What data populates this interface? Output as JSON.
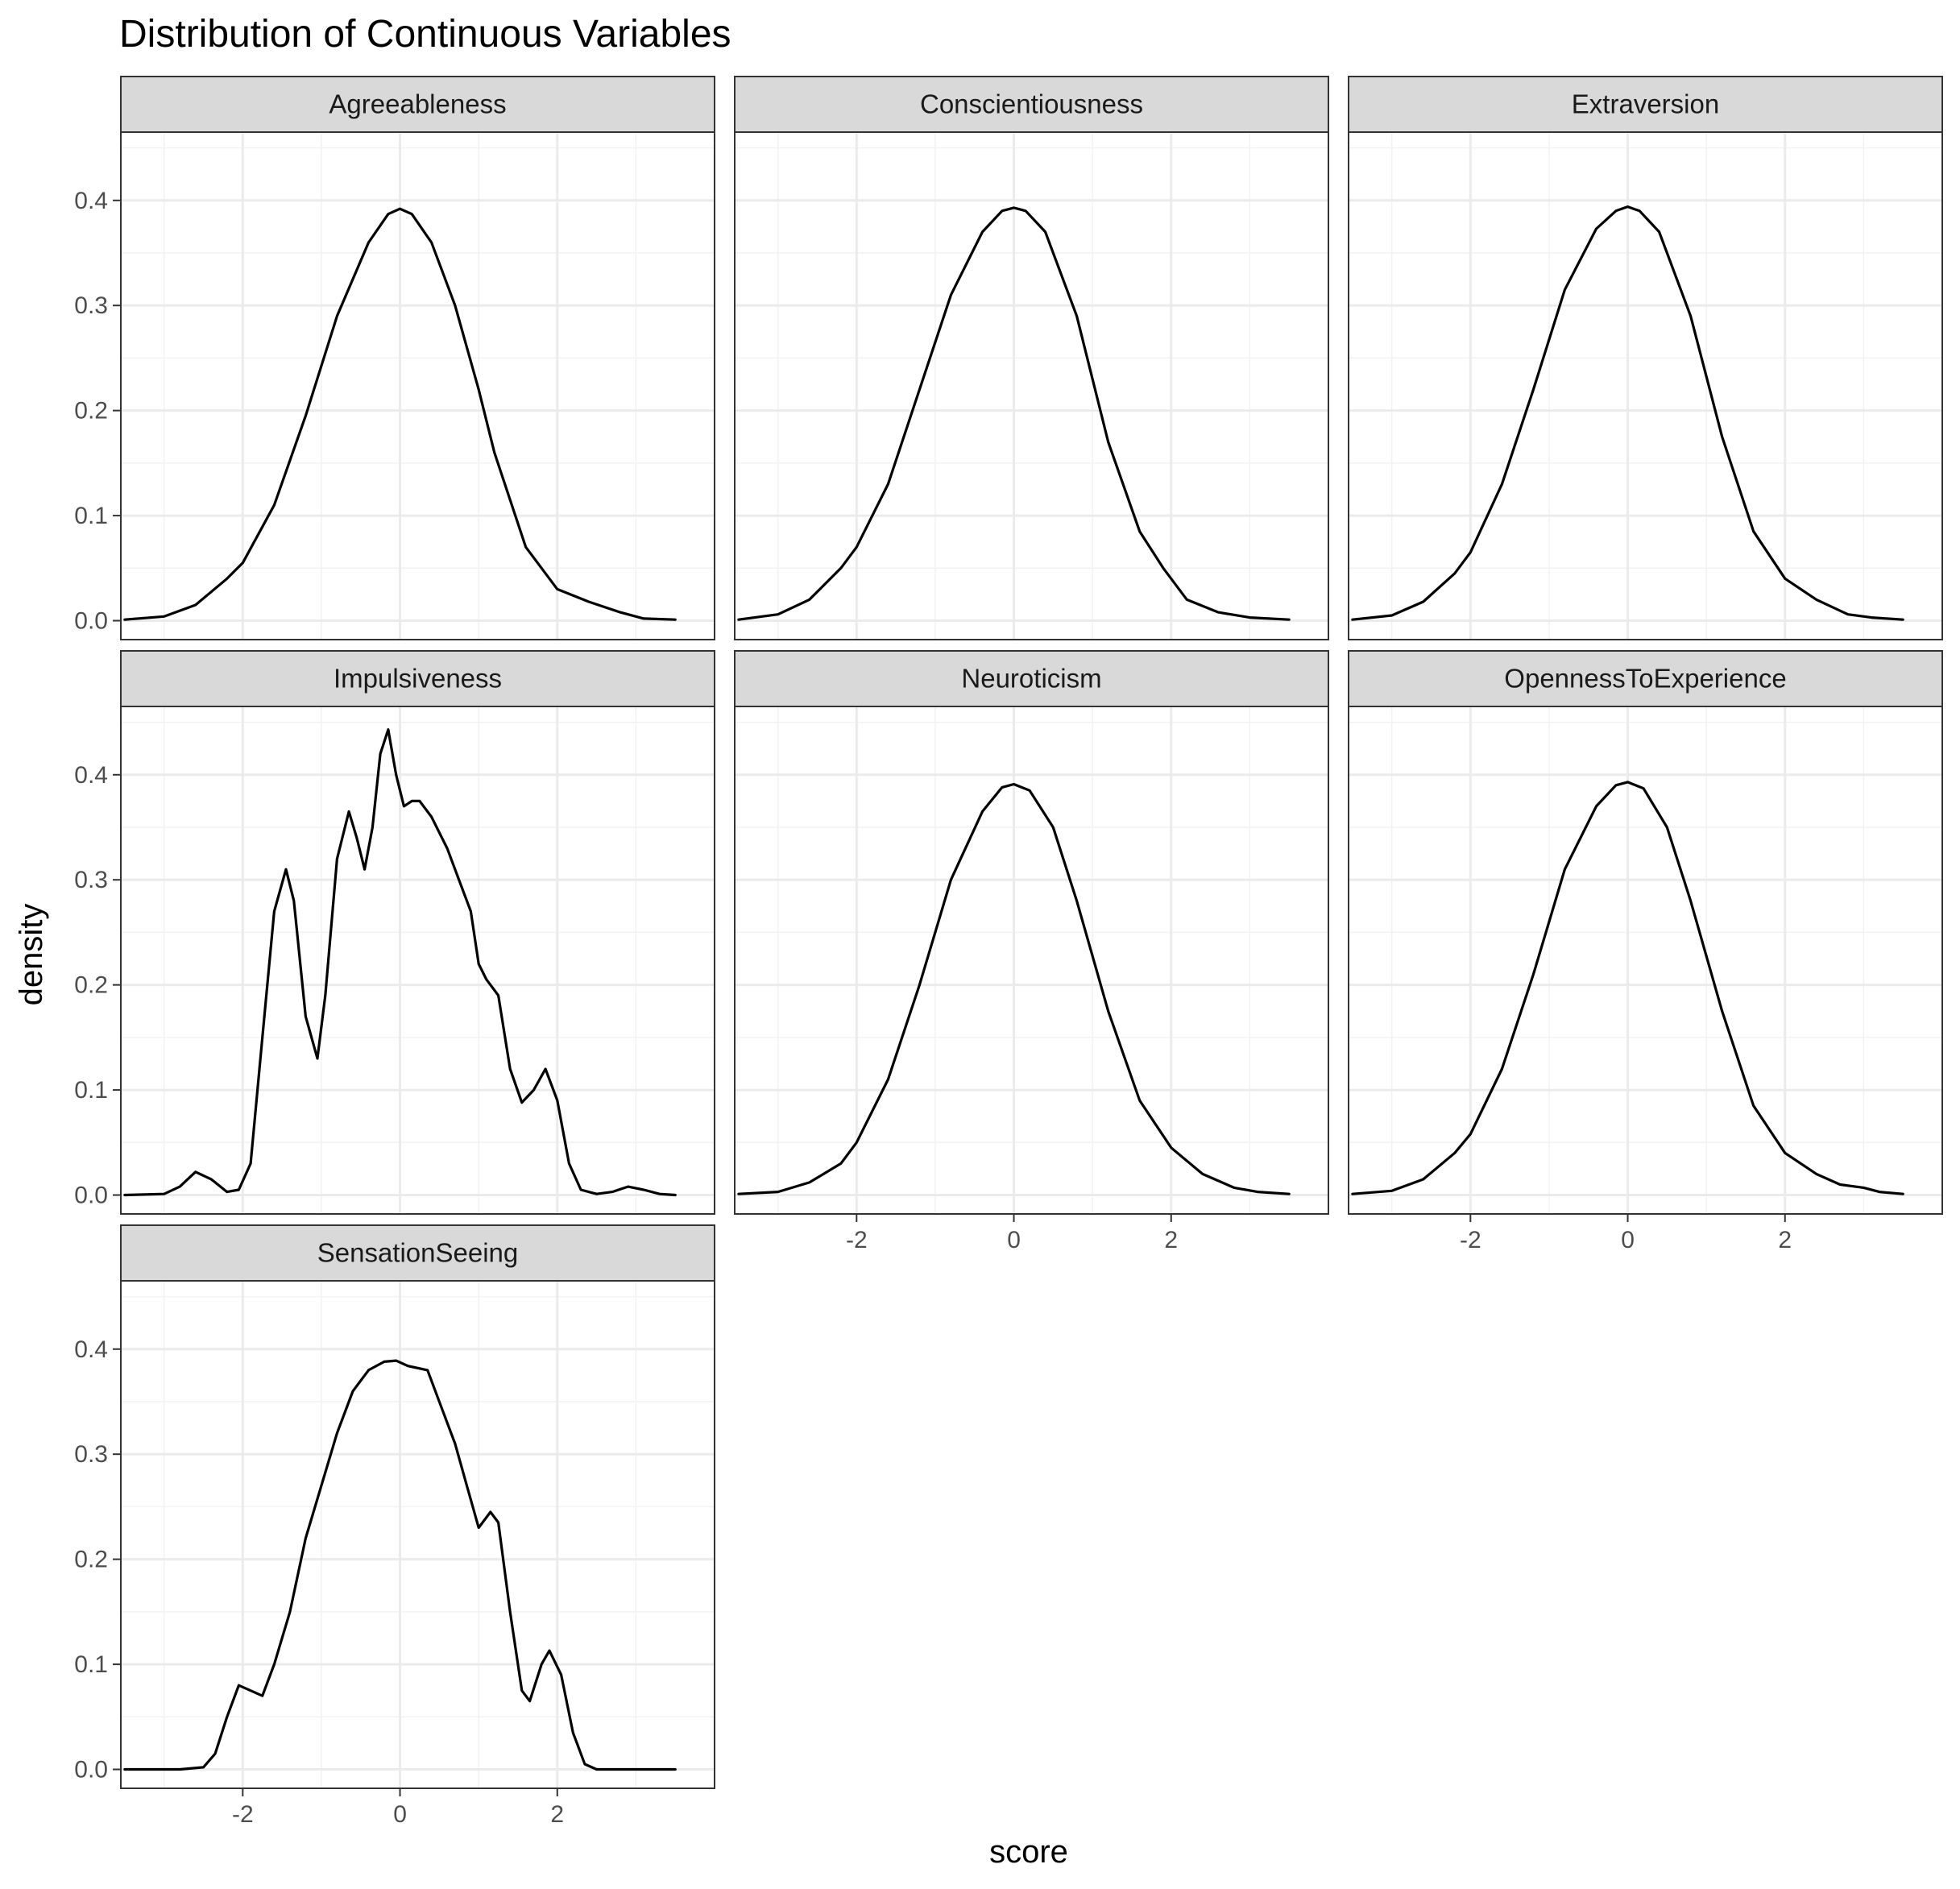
{
  "chart_data": {
    "type": "line",
    "title": "Distribution of Continuous Variables",
    "xlabel": "score",
    "ylabel": "density",
    "xlim": [
      -3.55,
      4.0
    ],
    "ylim": [
      -0.018,
      0.465
    ],
    "x_ticks": [
      "-2",
      "0",
      "2"
    ],
    "x_tick_values": [
      -2,
      0,
      2
    ],
    "y_ticks": [
      "0.0",
      "0.1",
      "0.2",
      "0.3",
      "0.4"
    ],
    "y_tick_values": [
      0.0,
      0.1,
      0.2,
      0.3,
      0.4
    ],
    "grid": true,
    "line_color": "#000000",
    "panels": [
      {
        "name": "Agreeableness",
        "points": [
          [
            -3.5,
            0.001
          ],
          [
            -3.0,
            0.004
          ],
          [
            -2.6,
            0.015
          ],
          [
            -2.2,
            0.04
          ],
          [
            -2.0,
            0.055
          ],
          [
            -1.6,
            0.11
          ],
          [
            -1.2,
            0.195
          ],
          [
            -0.8,
            0.29
          ],
          [
            -0.4,
            0.36
          ],
          [
            -0.15,
            0.387
          ],
          [
            0.0,
            0.392
          ],
          [
            0.15,
            0.387
          ],
          [
            0.4,
            0.36
          ],
          [
            0.7,
            0.3
          ],
          [
            1.0,
            0.22
          ],
          [
            1.2,
            0.16
          ],
          [
            1.6,
            0.07
          ],
          [
            2.0,
            0.03
          ],
          [
            2.4,
            0.018
          ],
          [
            2.8,
            0.008
          ],
          [
            3.1,
            0.002
          ],
          [
            3.5,
            0.001
          ]
        ]
      },
      {
        "name": "Conscientiousness",
        "points": [
          [
            -3.5,
            0.001
          ],
          [
            -3.0,
            0.006
          ],
          [
            -2.6,
            0.02
          ],
          [
            -2.2,
            0.05
          ],
          [
            -2.0,
            0.07
          ],
          [
            -1.6,
            0.13
          ],
          [
            -1.2,
            0.22
          ],
          [
            -0.8,
            0.31
          ],
          [
            -0.4,
            0.37
          ],
          [
            -0.15,
            0.39
          ],
          [
            0.0,
            0.393
          ],
          [
            0.15,
            0.39
          ],
          [
            0.4,
            0.37
          ],
          [
            0.8,
            0.29
          ],
          [
            1.2,
            0.17
          ],
          [
            1.6,
            0.085
          ],
          [
            1.9,
            0.05
          ],
          [
            2.2,
            0.02
          ],
          [
            2.6,
            0.008
          ],
          [
            3.0,
            0.003
          ],
          [
            3.5,
            0.001
          ]
        ]
      },
      {
        "name": "Extraversion",
        "points": [
          [
            -3.5,
            0.001
          ],
          [
            -3.0,
            0.005
          ],
          [
            -2.6,
            0.018
          ],
          [
            -2.2,
            0.045
          ],
          [
            -2.0,
            0.065
          ],
          [
            -1.6,
            0.13
          ],
          [
            -1.2,
            0.22
          ],
          [
            -0.8,
            0.315
          ],
          [
            -0.4,
            0.373
          ],
          [
            -0.15,
            0.39
          ],
          [
            0.0,
            0.394
          ],
          [
            0.15,
            0.39
          ],
          [
            0.4,
            0.37
          ],
          [
            0.8,
            0.29
          ],
          [
            1.2,
            0.175
          ],
          [
            1.6,
            0.085
          ],
          [
            2.0,
            0.04
          ],
          [
            2.4,
            0.02
          ],
          [
            2.8,
            0.006
          ],
          [
            3.1,
            0.003
          ],
          [
            3.5,
            0.001
          ]
        ]
      },
      {
        "name": "Impulsiveness",
        "points": [
          [
            -3.5,
            0.0
          ],
          [
            -3.0,
            0.001
          ],
          [
            -2.8,
            0.008
          ],
          [
            -2.6,
            0.022
          ],
          [
            -2.4,
            0.015
          ],
          [
            -2.2,
            0.003
          ],
          [
            -2.05,
            0.005
          ],
          [
            -1.9,
            0.03
          ],
          [
            -1.75,
            0.15
          ],
          [
            -1.6,
            0.27
          ],
          [
            -1.45,
            0.31
          ],
          [
            -1.35,
            0.28
          ],
          [
            -1.2,
            0.17
          ],
          [
            -1.05,
            0.13
          ],
          [
            -0.95,
            0.19
          ],
          [
            -0.8,
            0.32
          ],
          [
            -0.65,
            0.365
          ],
          [
            -0.55,
            0.34
          ],
          [
            -0.45,
            0.31
          ],
          [
            -0.35,
            0.35
          ],
          [
            -0.25,
            0.42
          ],
          [
            -0.15,
            0.443
          ],
          [
            -0.05,
            0.4
          ],
          [
            0.05,
            0.37
          ],
          [
            0.15,
            0.375
          ],
          [
            0.25,
            0.375
          ],
          [
            0.4,
            0.36
          ],
          [
            0.6,
            0.33
          ],
          [
            0.75,
            0.3
          ],
          [
            0.9,
            0.27
          ],
          [
            1.0,
            0.22
          ],
          [
            1.1,
            0.205
          ],
          [
            1.25,
            0.19
          ],
          [
            1.4,
            0.12
          ],
          [
            1.55,
            0.088
          ],
          [
            1.7,
            0.1
          ],
          [
            1.85,
            0.12
          ],
          [
            2.0,
            0.09
          ],
          [
            2.15,
            0.03
          ],
          [
            2.3,
            0.005
          ],
          [
            2.5,
            0.001
          ],
          [
            2.7,
            0.003
          ],
          [
            2.9,
            0.008
          ],
          [
            3.1,
            0.005
          ],
          [
            3.3,
            0.001
          ],
          [
            3.5,
            0.0
          ]
        ]
      },
      {
        "name": "Neuroticism",
        "points": [
          [
            -3.5,
            0.001
          ],
          [
            -3.0,
            0.003
          ],
          [
            -2.6,
            0.012
          ],
          [
            -2.2,
            0.03
          ],
          [
            -2.0,
            0.05
          ],
          [
            -1.6,
            0.11
          ],
          [
            -1.2,
            0.2
          ],
          [
            -0.8,
            0.3
          ],
          [
            -0.4,
            0.365
          ],
          [
            -0.15,
            0.388
          ],
          [
            0.0,
            0.391
          ],
          [
            0.2,
            0.385
          ],
          [
            0.5,
            0.35
          ],
          [
            0.8,
            0.28
          ],
          [
            1.2,
            0.175
          ],
          [
            1.6,
            0.09
          ],
          [
            2.0,
            0.045
          ],
          [
            2.4,
            0.02
          ],
          [
            2.8,
            0.007
          ],
          [
            3.1,
            0.003
          ],
          [
            3.5,
            0.001
          ]
        ]
      },
      {
        "name": "OpennessToExperience",
        "points": [
          [
            -3.5,
            0.001
          ],
          [
            -3.0,
            0.004
          ],
          [
            -2.6,
            0.015
          ],
          [
            -2.2,
            0.04
          ],
          [
            -2.0,
            0.058
          ],
          [
            -1.6,
            0.12
          ],
          [
            -1.2,
            0.21
          ],
          [
            -0.8,
            0.31
          ],
          [
            -0.4,
            0.37
          ],
          [
            -0.15,
            0.39
          ],
          [
            0.0,
            0.393
          ],
          [
            0.2,
            0.387
          ],
          [
            0.5,
            0.35
          ],
          [
            0.8,
            0.28
          ],
          [
            1.2,
            0.175
          ],
          [
            1.6,
            0.085
          ],
          [
            2.0,
            0.04
          ],
          [
            2.4,
            0.02
          ],
          [
            2.7,
            0.01
          ],
          [
            3.0,
            0.007
          ],
          [
            3.2,
            0.003
          ],
          [
            3.5,
            0.001
          ]
        ]
      },
      {
        "name": "SensationSeeing",
        "points": [
          [
            -3.5,
            0.0
          ],
          [
            -2.8,
            0.0
          ],
          [
            -2.5,
            0.002
          ],
          [
            -2.35,
            0.015
          ],
          [
            -2.2,
            0.05
          ],
          [
            -2.05,
            0.08
          ],
          [
            -1.9,
            0.075
          ],
          [
            -1.75,
            0.07
          ],
          [
            -1.6,
            0.1
          ],
          [
            -1.4,
            0.15
          ],
          [
            -1.2,
            0.22
          ],
          [
            -1.0,
            0.27
          ],
          [
            -0.8,
            0.32
          ],
          [
            -0.6,
            0.36
          ],
          [
            -0.4,
            0.38
          ],
          [
            -0.2,
            0.388
          ],
          [
            -0.05,
            0.389
          ],
          [
            0.1,
            0.384
          ],
          [
            0.35,
            0.38
          ],
          [
            0.5,
            0.35
          ],
          [
            0.7,
            0.31
          ],
          [
            0.85,
            0.27
          ],
          [
            1.0,
            0.23
          ],
          [
            1.15,
            0.245
          ],
          [
            1.25,
            0.235
          ],
          [
            1.4,
            0.15
          ],
          [
            1.55,
            0.075
          ],
          [
            1.65,
            0.065
          ],
          [
            1.8,
            0.1
          ],
          [
            1.9,
            0.113
          ],
          [
            2.05,
            0.09
          ],
          [
            2.2,
            0.035
          ],
          [
            2.35,
            0.005
          ],
          [
            2.5,
            0.0
          ],
          [
            3.5,
            0.0
          ]
        ]
      }
    ]
  }
}
